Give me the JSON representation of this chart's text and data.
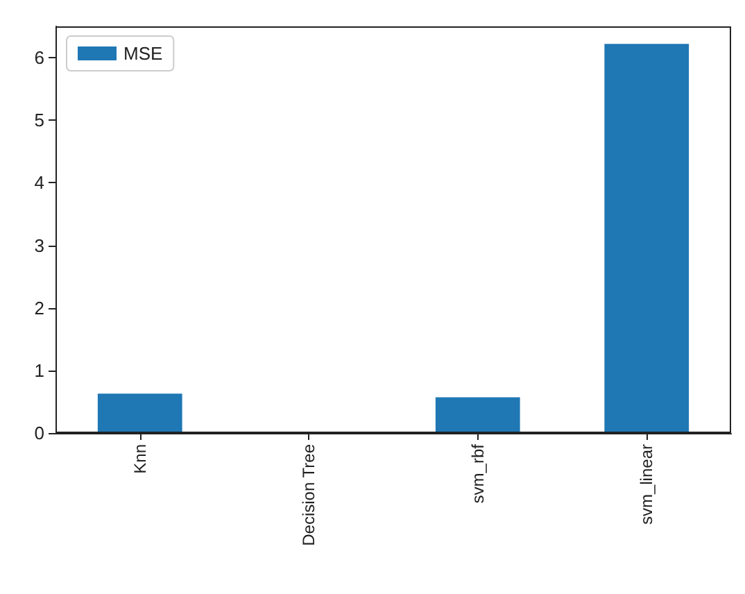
{
  "chart_data": {
    "type": "bar",
    "categories": [
      "Knn",
      "Decision Tree",
      "svm_rbf",
      "svm_linear"
    ],
    "series": [
      {
        "name": "MSE",
        "color": "#1f77b4",
        "values": [
          0.63,
          0,
          0.57,
          6.22
        ]
      }
    ],
    "ylim": [
      0,
      6.5
    ],
    "yticks": [
      0,
      1,
      2,
      3,
      4,
      5,
      6
    ],
    "grid": false,
    "legend": "top left"
  }
}
